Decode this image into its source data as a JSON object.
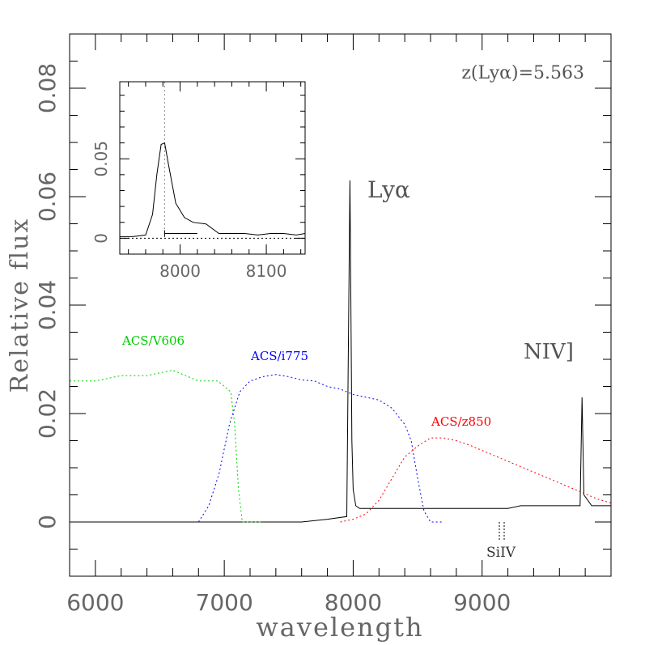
{
  "chart_data": {
    "type": "line",
    "xlabel": "wavelength",
    "ylabel": "Relative flux",
    "xlim": [
      5800,
      10000
    ],
    "ylim": [
      -0.01,
      0.09
    ],
    "xticks": [
      6000,
      7000,
      8000,
      9000
    ],
    "xtick_labels": [
      "6000",
      "7000",
      "8000",
      "9000"
    ],
    "yticks": [
      0,
      0.02,
      0.04,
      0.06,
      0.08
    ],
    "ytick_labels": [
      "0",
      "0.02",
      "0.04",
      "0.06",
      "0.08"
    ],
    "redshift_label": "z(Lyα)=5.563",
    "line_labels": {
      "lya": "Lyα",
      "niv": "NIV]",
      "siiv": "SiIV"
    },
    "filter_labels": {
      "v606": "ACS/V606",
      "i775": "ACS/i775",
      "z850": "ACS/z850"
    },
    "colors": {
      "spectrum": "#000000",
      "v606": "#00cc00",
      "i775": "#0000ff",
      "z850": "#ff0000",
      "axis": "#000000",
      "tick_text": "#666666"
    },
    "series": [
      {
        "name": "spectrum",
        "style": "solid",
        "x": [
          5800,
          6000,
          6200,
          6400,
          6600,
          6800,
          7000,
          7200,
          7400,
          7600,
          7800,
          7950,
          7975,
          7982,
          7990,
          8000,
          8020,
          8050,
          8100,
          8200,
          8300,
          8400,
          8500,
          8600,
          8700,
          8800,
          8900,
          9000,
          9100,
          9200,
          9300,
          9400,
          9500,
          9600,
          9700,
          9760,
          9775,
          9790,
          9850,
          9900,
          9950,
          10000
        ],
        "y": [
          0,
          0,
          0,
          0,
          0,
          0,
          0,
          0,
          0,
          0,
          0.0005,
          0.001,
          0.063,
          0.04,
          0.015,
          0.006,
          0.003,
          0.0025,
          0.0025,
          0.0025,
          0.0025,
          0.0025,
          0.0025,
          0.0025,
          0.0025,
          0.0025,
          0.0025,
          0.0025,
          0.0025,
          0.0025,
          0.003,
          0.003,
          0.003,
          0.003,
          0.003,
          0.003,
          0.023,
          0.005,
          0.003,
          0.003,
          0.003,
          0.003
        ]
      },
      {
        "name": "ACS/V606",
        "style": "dotted",
        "x": [
          5800,
          6000,
          6200,
          6400,
          6600,
          6800,
          6950,
          7050,
          7080,
          7110,
          7140,
          7200,
          7300
        ],
        "y": [
          0.026,
          0.026,
          0.027,
          0.027,
          0.028,
          0.026,
          0.026,
          0.024,
          0.018,
          0.006,
          0,
          0,
          0
        ]
      },
      {
        "name": "ACS/i775",
        "style": "dotted",
        "x": [
          6800,
          6880,
          6960,
          7040,
          7120,
          7200,
          7300,
          7400,
          7500,
          7600,
          7700,
          7800,
          7900,
          8000,
          8100,
          8200,
          8300,
          8400,
          8450,
          8500,
          8550,
          8600,
          8700
        ],
        "y": [
          0,
          0.003,
          0.009,
          0.018,
          0.024,
          0.026,
          0.0268,
          0.0272,
          0.0268,
          0.0262,
          0.026,
          0.025,
          0.0245,
          0.0235,
          0.023,
          0.0225,
          0.021,
          0.018,
          0.015,
          0.008,
          0.002,
          0,
          0
        ]
      },
      {
        "name": "ACS/z850",
        "style": "dotted",
        "x": [
          7900,
          8000,
          8100,
          8200,
          8300,
          8400,
          8500,
          8600,
          8700,
          8800,
          8900,
          9000,
          9100,
          9200,
          9300,
          9400,
          9500,
          9600,
          9700,
          9800,
          9900,
          10000
        ],
        "y": [
          0,
          0.0005,
          0.0015,
          0.004,
          0.008,
          0.012,
          0.014,
          0.0155,
          0.0155,
          0.015,
          0.0142,
          0.0132,
          0.0122,
          0.0112,
          0.0102,
          0.0092,
          0.0082,
          0.0072,
          0.0062,
          0.0052,
          0.0042,
          0.0035
        ]
      }
    ],
    "inset": {
      "xlim": [
        7930,
        8145
      ],
      "ylim": [
        -0.01,
        0.0985
      ],
      "xticks": [
        8000,
        8100
      ],
      "xtick_labels": [
        "8000",
        "8100"
      ],
      "yticks": [
        0,
        0.05
      ],
      "ytick_labels": [
        "0",
        "0.05"
      ],
      "x": [
        7930,
        7945,
        7960,
        7968,
        7973,
        7978,
        7982,
        7987,
        7995,
        8005,
        8015,
        8030,
        8045,
        8060,
        8075,
        8090,
        8105,
        8120,
        8135,
        8145
      ],
      "y": [
        0.001,
        0.001,
        0.002,
        0.015,
        0.04,
        0.059,
        0.06,
        0.045,
        0.022,
        0.013,
        0.01,
        0.009,
        0.003,
        0.003,
        0.003,
        0.002,
        0.003,
        0.003,
        0.002,
        0.003
      ]
    }
  }
}
